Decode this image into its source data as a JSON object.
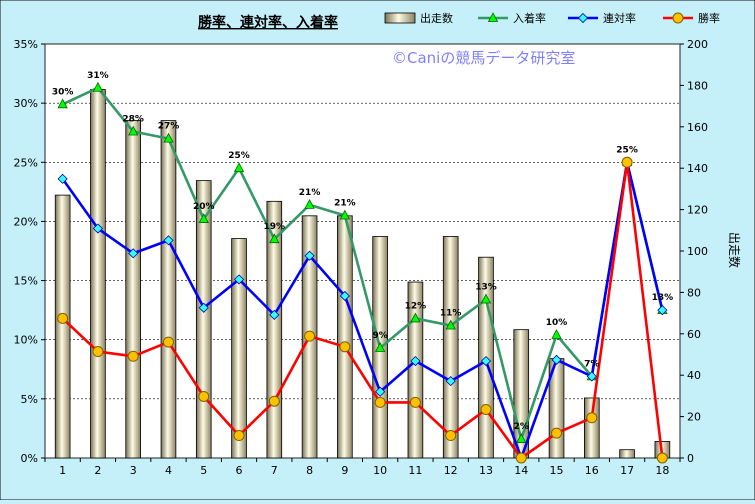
{
  "chart_data": {
    "type": "bar+line",
    "title": "勝率、連対率、入着率",
    "watermark": "©Caniの競馬データ研究室",
    "categories": [
      "1",
      "2",
      "3",
      "4",
      "5",
      "6",
      "7",
      "8",
      "9",
      "10",
      "11",
      "12",
      "13",
      "14",
      "15",
      "16",
      "17",
      "18"
    ],
    "bar_series": {
      "name": "出走数",
      "axis": "right",
      "values": [
        127,
        178,
        163,
        163,
        134,
        106,
        124,
        117,
        117,
        107,
        85,
        107,
        97,
        62,
        48,
        29,
        4,
        8
      ]
    },
    "line_series": [
      {
        "name": "入着率",
        "color": "#339966",
        "marker": "triangle",
        "values": [
          29.9,
          31.3,
          27.6,
          27.0,
          20.2,
          24.5,
          18.5,
          21.4,
          20.5,
          9.3,
          11.8,
          11.2,
          13.4,
          1.6,
          10.4,
          6.9,
          25.0,
          12.5
        ],
        "labels": [
          "30%",
          "31%",
          "28%",
          "27%",
          "20%",
          "25%",
          "19%",
          "21%",
          "21%",
          "9%",
          "12%",
          "11%",
          "13%",
          "2%",
          "10%",
          "7%",
          "25%",
          "13%"
        ]
      },
      {
        "name": "連対率",
        "color": "#0000ff",
        "marker": "diamond",
        "values": [
          23.6,
          19.4,
          17.3,
          18.4,
          12.7,
          15.1,
          12.1,
          17.1,
          13.7,
          5.6,
          8.2,
          6.5,
          8.2,
          0.0,
          8.3,
          6.9,
          25.0,
          12.5
        ]
      },
      {
        "name": "勝率",
        "color": "#ff0000",
        "marker": "circle",
        "values": [
          11.8,
          9.0,
          8.6,
          9.8,
          5.2,
          1.9,
          4.8,
          10.3,
          9.4,
          4.7,
          4.7,
          1.9,
          4.1,
          0.0,
          2.1,
          3.4,
          25.0,
          0.0
        ]
      }
    ],
    "y_left": {
      "min": 0,
      "max": 35,
      "step": 5,
      "format": "percent"
    },
    "y_right": {
      "min": 0,
      "max": 200,
      "step": 20,
      "label": "出走数"
    },
    "legend": {
      "position": "top-right"
    },
    "grid": true,
    "colors": {
      "background": "#c6f0f9",
      "plot": "#ffffff",
      "bar": "#efe7b0",
      "watermark": "#7f7fff"
    }
  }
}
